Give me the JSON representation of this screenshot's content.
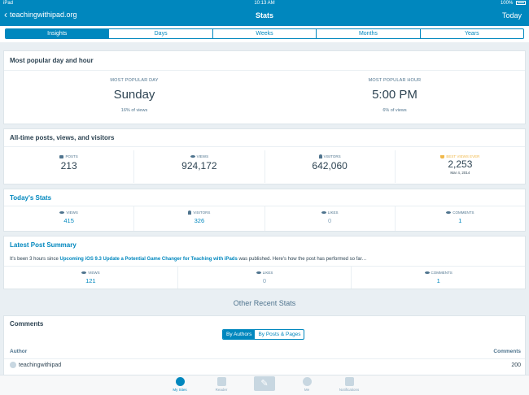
{
  "status_bar": {
    "device": "iPad",
    "time": "10:13 AM",
    "battery": "100%"
  },
  "nav": {
    "back_label": "teachingwithipad.org",
    "title": "Stats",
    "today_label": "Today"
  },
  "tabs": [
    {
      "label": "Insights",
      "active": true
    },
    {
      "label": "Days",
      "active": false
    },
    {
      "label": "Weeks",
      "active": false
    },
    {
      "label": "Months",
      "active": false
    },
    {
      "label": "Years",
      "active": false
    }
  ],
  "popular": {
    "title": "Most popular day and hour",
    "day_label": "MOST POPULAR DAY",
    "day_value": "Sunday",
    "day_sub": "16% of views",
    "hour_label": "MOST POPULAR HOUR",
    "hour_value": "5:00 PM",
    "hour_sub": "6% of views"
  },
  "alltime": {
    "title": "All-time posts, views, and visitors",
    "posts_label": "POSTS",
    "posts_value": "213",
    "views_label": "VIEWS",
    "views_value": "924,172",
    "visitors_label": "VISITORS",
    "visitors_value": "642,060",
    "best_label": "BEST VIEWS EVER",
    "best_value": "2,253",
    "best_date": "Mar 4, 2014"
  },
  "today": {
    "title": "Today's Stats",
    "views_label": "VIEWS",
    "views_value": "415",
    "visitors_label": "VISITORS",
    "visitors_value": "326",
    "likes_label": "LIKES",
    "likes_value": "0",
    "comments_label": "COMMENTS",
    "comments_value": "1"
  },
  "latest": {
    "title": "Latest Post Summary",
    "text_prefix": "It's been 3 hours since ",
    "post_link": "Upcoming iOS 9.3 Update a Potential Game Changer for Teaching with iPads",
    "text_suffix": " was published. Here's how the post has performed so far…",
    "views_label": "VIEWS",
    "views_value": "121",
    "likes_label": "LIKES",
    "likes_value": "0",
    "comments_label": "COMMENTS",
    "comments_value": "1"
  },
  "other_title": "Other Recent Stats",
  "comments": {
    "title": "Comments",
    "toggle_authors": "By Authors",
    "toggle_posts": "By Posts & Pages",
    "col_author": "Author",
    "col_comments": "Comments",
    "rows": [
      {
        "author": "teachingwithipad",
        "count": "200"
      }
    ]
  },
  "tabbar": {
    "my_sites": "My Sites",
    "reader": "Reader",
    "me": "Me",
    "notifications": "Notifications"
  },
  "colors": {
    "accent": "#0087be",
    "background": "#e9eff3",
    "gold": "#f0b849"
  }
}
